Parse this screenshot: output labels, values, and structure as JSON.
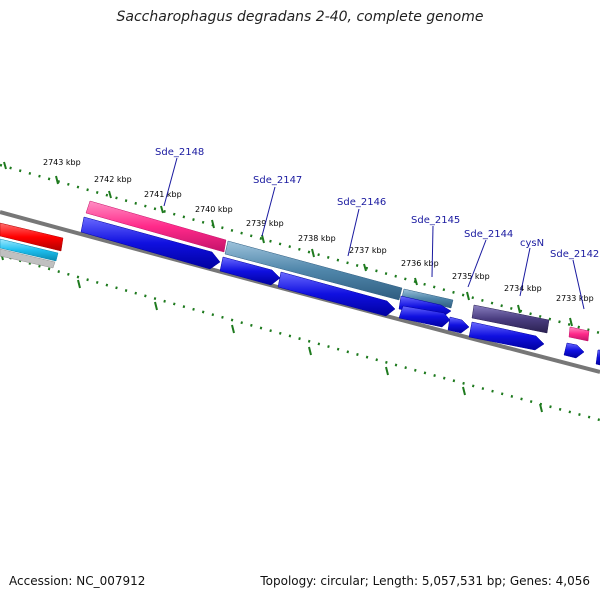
{
  "title": "Saccharophagus degradans 2-40, complete genome",
  "accession": "Accession: NC_007912",
  "summary": "Topology: circular; Length: 5,057,531 bp; Genes: 4,056",
  "ticks": [
    "2743 kbp",
    "2742 kbp",
    "2741 kbp",
    "2740 kbp",
    "2739 kbp",
    "2738 kbp",
    "2737 kbp",
    "2736 kbp",
    "2735 kbp",
    "2734 kbp",
    "2733 kbp"
  ],
  "gene_labels": [
    "Sde_2148",
    "Sde_2147",
    "Sde_2146",
    "Sde_2145",
    "Sde_2144",
    "cysN",
    "Sde_2142"
  ],
  "colors": {
    "backbone": "#777777",
    "tick_green": "#1e7a1e",
    "label_blue": "#1a1aa0",
    "cds_blue": "#1010e0",
    "pink": "#ff2a8a",
    "steel": "#4f86aa",
    "purple": "#4a3d80",
    "red": "#ff0000",
    "cyan": "#1ec0f0"
  }
}
